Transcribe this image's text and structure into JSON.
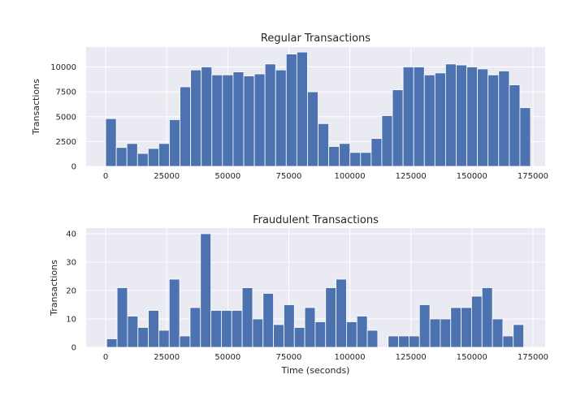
{
  "chart_data": [
    {
      "type": "bar",
      "title": "Regular Transactions",
      "xlabel": "",
      "ylabel": "Transactions",
      "bin_width": 4350,
      "x_start": 0,
      "xlim": [
        -8000,
        180000
      ],
      "ylim": [
        0,
        12000
      ],
      "xticks": [
        0,
        25000,
        50000,
        75000,
        100000,
        125000,
        150000,
        175000
      ],
      "yticks": [
        0,
        2500,
        5000,
        7500,
        10000
      ],
      "grid": true,
      "values": [
        4800,
        1900,
        2300,
        1300,
        1800,
        2300,
        4700,
        8000,
        9700,
        10000,
        9200,
        9200,
        9500,
        9100,
        9300,
        10300,
        9700,
        11300,
        11500,
        7500,
        4300,
        2000,
        2300,
        1400,
        1400,
        2800,
        5100,
        7700,
        10000,
        10000,
        9200,
        9400,
        10300,
        10200,
        10000,
        9800,
        9200,
        9600,
        8200,
        5900
      ]
    },
    {
      "type": "bar",
      "title": "Fraudulent Transactions",
      "xlabel": "Time (seconds)",
      "ylabel": "Transactions",
      "bin_width": 4270,
      "x_start": 406,
      "xlim": [
        -8000,
        180000
      ],
      "ylim": [
        0,
        42
      ],
      "xticks": [
        0,
        25000,
        50000,
        75000,
        100000,
        125000,
        150000,
        175000
      ],
      "yticks": [
        0,
        10,
        20,
        30,
        40
      ],
      "grid": true,
      "values": [
        3,
        21,
        11,
        7,
        13,
        6,
        24,
        4,
        14,
        40,
        13,
        13,
        13,
        21,
        10,
        19,
        8,
        15,
        7,
        14,
        9,
        21,
        24,
        9,
        11,
        6,
        0,
        4,
        4,
        4,
        15,
        10,
        10,
        14,
        14,
        18,
        21,
        10,
        4,
        8
      ]
    }
  ]
}
